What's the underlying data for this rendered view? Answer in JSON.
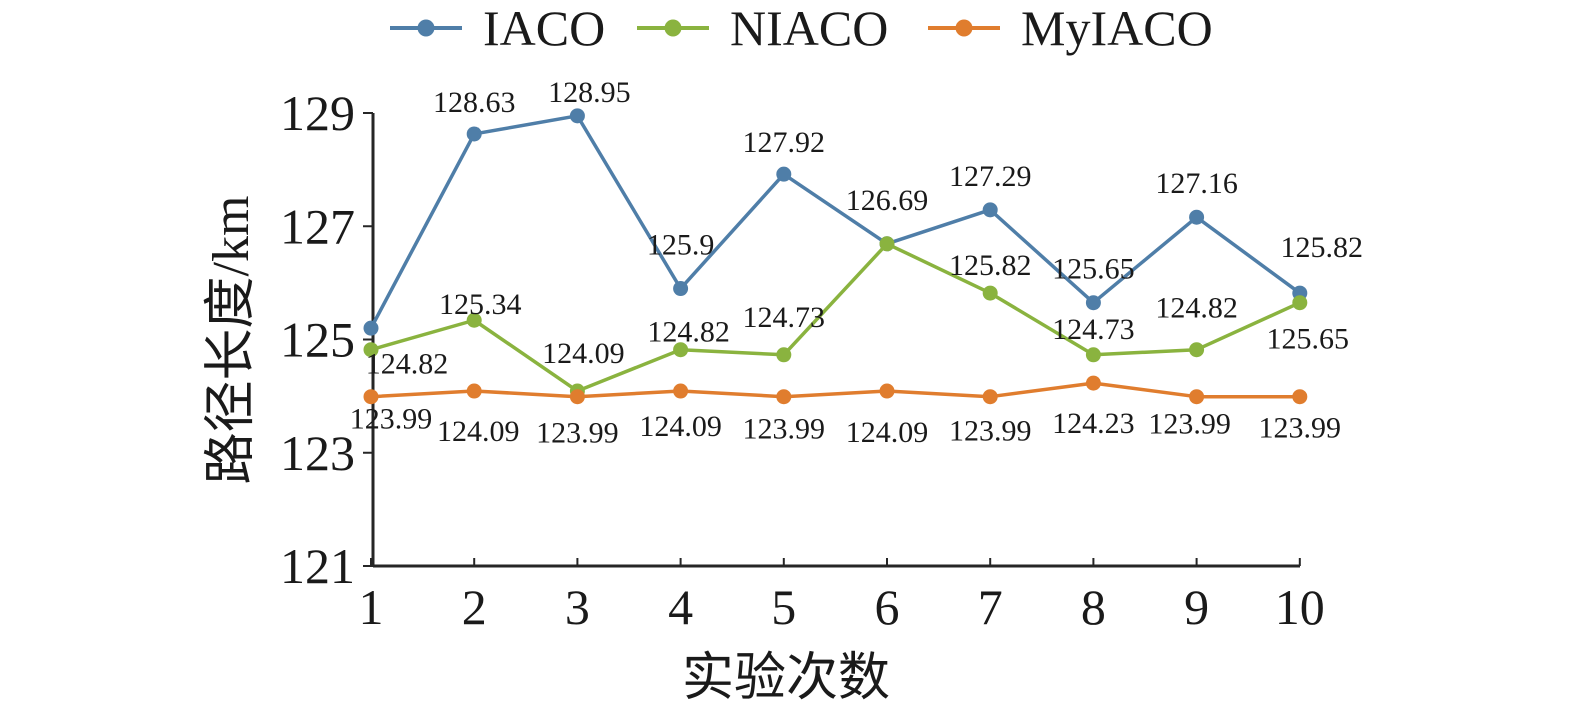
{
  "chart_data": {
    "type": "line",
    "title": "",
    "xlabel": "实验次数",
    "ylabel": "路径长度/km",
    "x": [
      1,
      2,
      3,
      4,
      5,
      6,
      7,
      8,
      9,
      10
    ],
    "x_tick_labels": [
      "1",
      "2",
      "3",
      "4",
      "5",
      "6",
      "7",
      "8",
      "9",
      "10"
    ],
    "ylim": [
      121,
      129
    ],
    "y_ticks": [
      121,
      123,
      125,
      127,
      129
    ],
    "y_tick_labels": [
      "121",
      "123",
      "125",
      "127",
      "129"
    ],
    "grid": false,
    "legend_position": "top-center",
    "series": [
      {
        "name": "IACO",
        "color": "#4f7ea8",
        "values": [
          125.2,
          128.63,
          128.95,
          125.9,
          127.92,
          126.69,
          127.29,
          125.65,
          127.16,
          125.82
        ],
        "labels": [
          "",
          "128.63",
          "128.95",
          "125.9",
          "127.92",
          "126.69",
          "127.29",
          "125.65",
          "127.16",
          "125.82"
        ]
      },
      {
        "name": "NIACO",
        "color": "#8ab33f",
        "values": [
          124.82,
          125.34,
          124.09,
          124.82,
          124.73,
          126.69,
          125.82,
          124.73,
          124.82,
          125.65
        ],
        "labels": [
          "124.82",
          "125.34",
          "124.09",
          "124.82",
          "124.73",
          "",
          "125.82",
          "124.73",
          "124.82",
          "125.65"
        ]
      },
      {
        "name": "MyIACO",
        "color": "#e07d2e",
        "values": [
          123.99,
          124.09,
          123.99,
          124.09,
          123.99,
          124.09,
          123.99,
          124.23,
          123.99,
          123.99
        ],
        "labels": [
          "123.99",
          "124.09",
          "123.99",
          "124.09",
          "123.99",
          "124.09",
          "123.99",
          "124.23",
          "123.99",
          "123.99"
        ]
      }
    ]
  }
}
